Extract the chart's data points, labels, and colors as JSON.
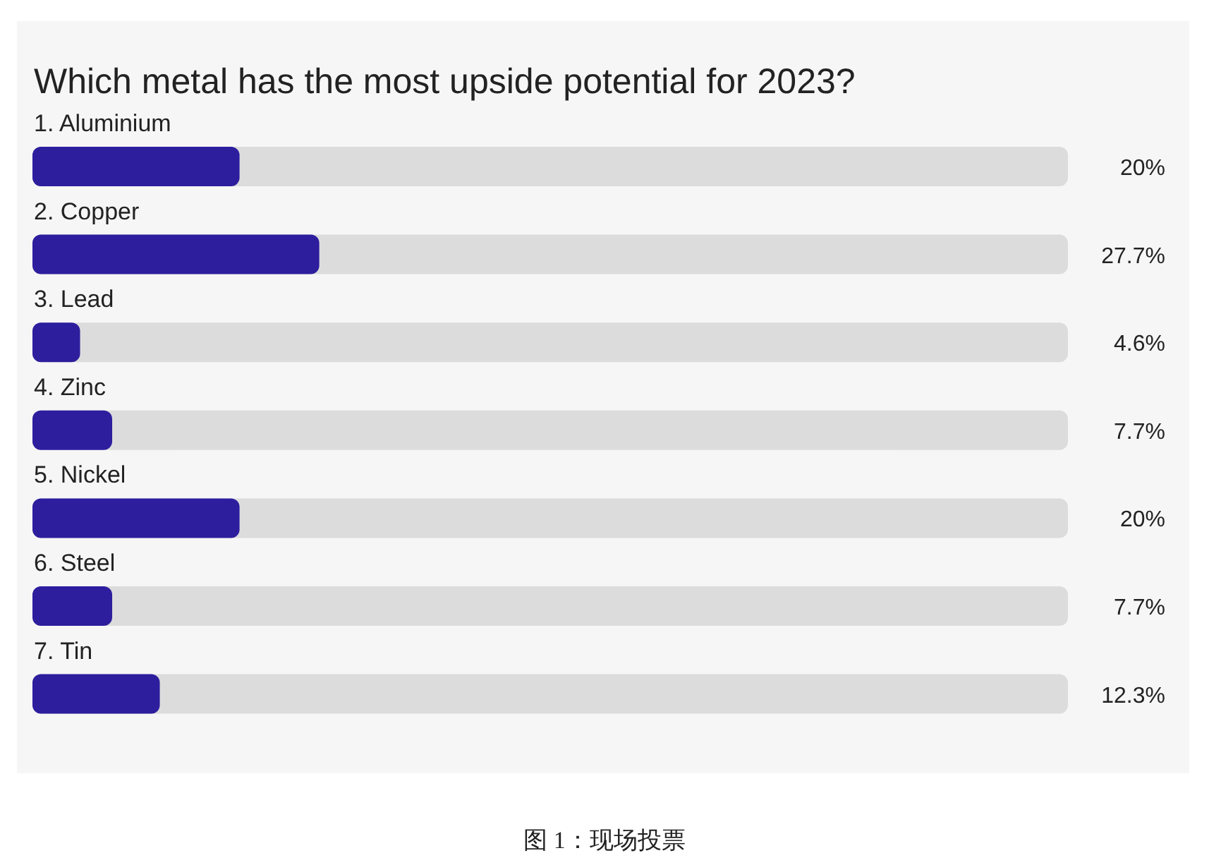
{
  "chart_data": {
    "type": "bar",
    "orientation": "horizontal",
    "title": "Which metal has the most upside potential for 2023?",
    "categories": [
      "1. Aluminium",
      "2. Copper",
      "3. Lead",
      "4. Zinc",
      "5. Nickel",
      "6. Steel",
      "7. Tin"
    ],
    "values": [
      20,
      27.7,
      4.6,
      7.7,
      20,
      7.7,
      12.3
    ],
    "value_labels": [
      "20%",
      "27.7%",
      "4.6%",
      "7.7%",
      "20%",
      "7.7%",
      "12.3%"
    ],
    "color": "#2d1e9e",
    "xlim": [
      0,
      100
    ],
    "annotations": [
      "图 1：现场投票"
    ]
  }
}
